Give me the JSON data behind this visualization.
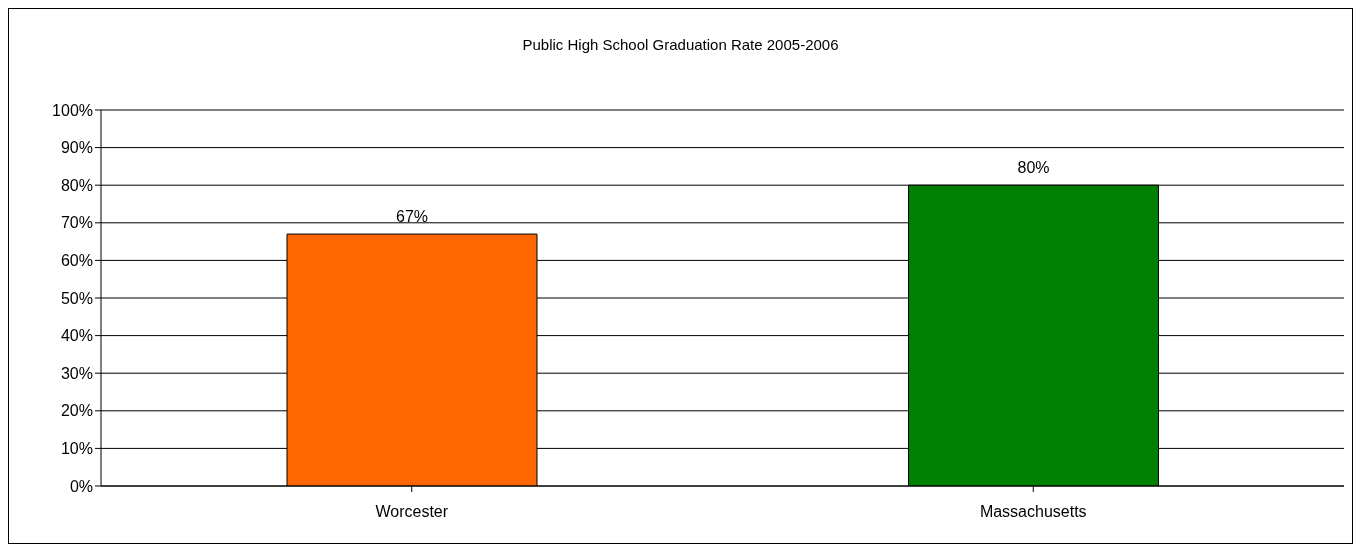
{
  "chart_data": {
    "type": "bar",
    "title": "Public High School Graduation Rate 2005-2006",
    "categories": [
      "Worcester",
      "Massachusetts"
    ],
    "values": [
      67,
      80
    ],
    "colors": [
      "#ff6600",
      "#008000"
    ],
    "value_labels": [
      "67%",
      "80%"
    ],
    "ylim": [
      0,
      100
    ],
    "yticks": [
      {
        "value": 0,
        "label": "0%"
      },
      {
        "value": 10,
        "label": "10%"
      },
      {
        "value": 20,
        "label": "20%"
      },
      {
        "value": 30,
        "label": "30%"
      },
      {
        "value": 40,
        "label": "40%"
      },
      {
        "value": 50,
        "label": "50%"
      },
      {
        "value": 60,
        "label": "60%"
      },
      {
        "value": 70,
        "label": "70%"
      },
      {
        "value": 80,
        "label": "80%"
      },
      {
        "value": 90,
        "label": "90%"
      },
      {
        "value": 100,
        "label": "100%"
      }
    ],
    "grid": "y"
  }
}
